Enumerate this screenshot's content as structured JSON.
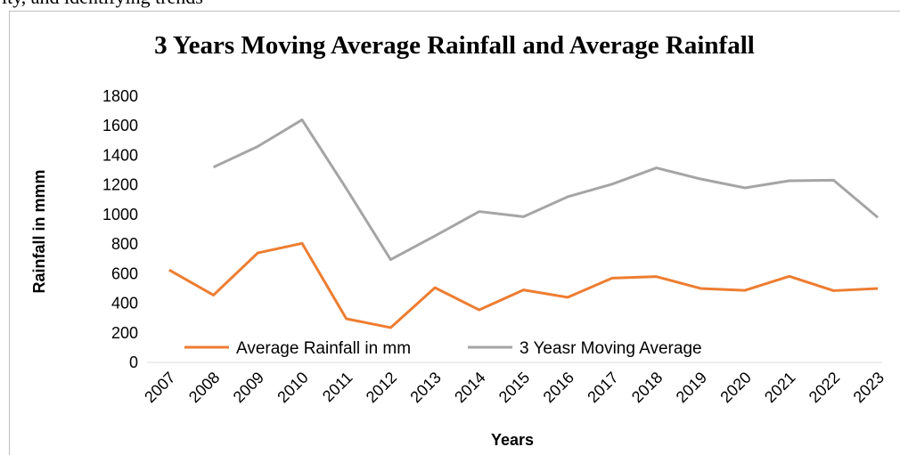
{
  "body_text": "ity, and identifying trends",
  "chart_data": {
    "type": "line",
    "title": "3 Years Moving Average Rainfall and Average Rainfall",
    "x_label": "Years",
    "y_label": "Rainfall in mmm",
    "categories": [
      "2007",
      "2008",
      "2009",
      "2010",
      "2011",
      "2012",
      "2013",
      "2014",
      "2015",
      "2016",
      "2017",
      "2018",
      "2019",
      "2020",
      "2021",
      "2022",
      "2023"
    ],
    "series": [
      {
        "name": "Average Rainfall in mm",
        "color": "#ED7D31",
        "values": [
          625,
          455,
          740,
          805,
          295,
          235,
          505,
          355,
          490,
          440,
          570,
          580,
          500,
          487,
          582,
          485,
          500
        ]
      },
      {
        "name": "3 Yeasr Moving Average",
        "color": "#A5A5A5",
        "values": [
          null,
          1320,
          1460,
          1640,
          1175,
          695,
          855,
          1020,
          985,
          1120,
          1205,
          1315,
          1240,
          1180,
          1228,
          1232,
          980
        ]
      }
    ],
    "ylim": [
      0,
      1800
    ],
    "yticks": [
      0,
      200,
      400,
      600,
      800,
      1000,
      1200,
      1400,
      1600,
      1800
    ],
    "grid": false,
    "legend": "bottom"
  }
}
